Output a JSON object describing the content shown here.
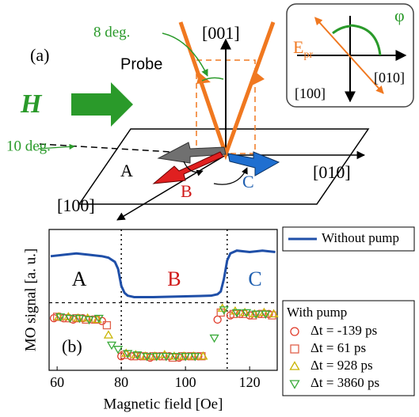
{
  "diagram": {
    "panel_label": "(a)",
    "angle_probe": "8 deg.",
    "axis_001": "[001]",
    "probe": "Probe",
    "field": "H",
    "angle_field": "10 deg.",
    "domains": [
      "A",
      "B",
      "C"
    ],
    "axis_010": "[010]",
    "axis_100": "[100]",
    "inset": {
      "field": "E",
      "field_sub": "pr",
      "angle": "φ",
      "axis_010": "[010]",
      "axis_100": "[100]"
    }
  },
  "chart_data": {
    "type": "scatter",
    "panel_label": "(b)",
    "x_label": "Magnetic field [Oe]",
    "y_label": "MO signal [a. u.]",
    "xlim": [
      57.5,
      128.6
    ],
    "ylim": [
      0,
      10
    ],
    "xticks": [
      60,
      80,
      100,
      120
    ],
    "vlines": [
      80,
      113
    ],
    "hline": 4.8,
    "regions": [
      {
        "label": "A",
        "color": "#000000"
      },
      {
        "label": "B",
        "color": "#d01818"
      },
      {
        "label": "C",
        "color": "#1f5fb0"
      }
    ],
    "legend_group_title": "With pump",
    "series": [
      {
        "name": "Without pump",
        "marker": "line",
        "color": "#1f4fa8",
        "x": [
          58,
          62,
          66,
          70,
          74,
          76,
          78,
          79,
          80,
          81,
          82,
          84,
          90,
          100,
          108,
          110,
          111,
          112,
          113,
          114,
          116,
          120,
          124,
          128
        ],
        "values": [
          8.1,
          8.2,
          8.3,
          8.2,
          8.1,
          8.0,
          7.7,
          7.2,
          6.0,
          5.5,
          5.3,
          5.2,
          5.2,
          5.25,
          5.3,
          5.4,
          5.6,
          6.5,
          7.8,
          8.3,
          8.5,
          8.4,
          8.5,
          8.4
        ]
      },
      {
        "name": "Δt = -139 ps",
        "marker": "circle",
        "color": "#e03a2a",
        "x": [
          59,
          62,
          65,
          68,
          71,
          74,
          80,
          83,
          86,
          89,
          92,
          95,
          98,
          101,
          104,
          110,
          114,
          117,
          120,
          123,
          126
        ],
        "values": [
          3.7,
          3.7,
          3.6,
          3.7,
          3.6,
          3.5,
          1.0,
          1.0,
          1.0,
          0.9,
          1.0,
          1.0,
          0.9,
          1.0,
          1.0,
          3.6,
          3.9,
          4.0,
          3.9,
          4.0,
          4.0
        ]
      },
      {
        "name": "Δt = 61 ps",
        "marker": "square",
        "color": "#e0604a",
        "x": [
          60,
          63,
          66,
          69,
          72,
          75.5,
          81,
          84,
          87,
          90,
          93,
          96,
          99,
          102,
          105,
          111,
          115,
          118,
          121,
          124,
          127
        ],
        "values": [
          3.8,
          3.7,
          3.7,
          3.6,
          3.6,
          3.2,
          1.1,
          1.0,
          1.0,
          1.0,
          1.0,
          0.9,
          1.0,
          1.0,
          1.0,
          4.1,
          4.0,
          4.0,
          3.9,
          4.0,
          3.9
        ]
      },
      {
        "name": "Δt = 928 ps",
        "marker": "triangle",
        "color": "#c8b400",
        "x": [
          60.5,
          63.5,
          66.5,
          69.5,
          72.5,
          76,
          81.5,
          84.5,
          87.5,
          90.5,
          93.5,
          96.5,
          99.5,
          102.5,
          105.5,
          111.5,
          115.5,
          118.5,
          121.5,
          124.5,
          127.5
        ],
        "values": [
          3.8,
          3.8,
          3.7,
          3.7,
          3.6,
          2.5,
          1.2,
          1.1,
          1.0,
          1.0,
          1.1,
          1.0,
          1.0,
          1.0,
          1.0,
          4.4,
          4.2,
          4.1,
          4.0,
          4.1,
          4.0
        ]
      },
      {
        "name": "Δt = 3860 ps",
        "marker": "triangle-down",
        "color": "#3aaa3a",
        "x": [
          61,
          64,
          67,
          70,
          73,
          77,
          79,
          82,
          85,
          88,
          91,
          94,
          97,
          100,
          103,
          109,
          112,
          116,
          119,
          122,
          125
        ],
        "values": [
          3.8,
          3.7,
          3.7,
          3.6,
          3.7,
          1.8,
          1.5,
          1.2,
          1.1,
          1.0,
          1.0,
          1.0,
          1.0,
          1.0,
          1.0,
          2.3,
          4.3,
          4.1,
          4.1,
          4.0,
          4.0
        ]
      }
    ]
  }
}
